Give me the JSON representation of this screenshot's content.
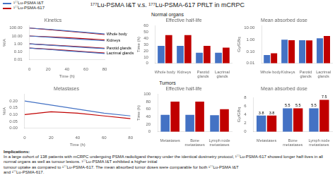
{
  "title": "¹⁷⁷Lu-PSMA I&T v.s. ¹⁷⁷Lu-PSMA-617 PRLT in mCRPC",
  "annotations": [
    "Normal organs",
    "Tumors",
    "Implications:",
    "In a large cohort of 138 patients with mCRPC undergoing PSMA radioligand therapy under the identical dosimetry protocol, ¹⁷⁷Lu-PSMA-617 showed longer half-lives in all normal organs as well as tumour lesions. ¹⁷⁷Lu-PSMA I&T exhibited a higher initial\ntumour uptake as compared to ¹⁷⁷Lu-PSMA-617. The mean absorbed tumor doses were comparable for both ¹⁷⁷Lu-PSMA I&T\nand ¹⁷⁷Lu-PSMA-617."
  ],
  "chart_data": [
    {
      "type": "line",
      "title": "Kinetics",
      "xlabel": "Time (h)",
      "ylabel": "%IA",
      "x": [
        0,
        20,
        40,
        60,
        80
      ],
      "series": [
        {
          "name": "¹⁷⁷Lu-PSMA I&T",
          "color": "#4472C4",
          "values": [
            100,
            70,
            45,
            28,
            18
          ]
        },
        {
          "name": "¹⁷⁷Lu-PSMA-617",
          "color": "#C00000",
          "values": [
            100,
            65,
            40,
            25,
            15
          ]
        },
        {
          "name": "¹⁷⁷Lu-PSMA I&T",
          "color": "#4472C4",
          "values": [
            10,
            7,
            5,
            3.5,
            2.5
          ]
        },
        {
          "name": "¹⁷⁷Lu-PSMA-617",
          "color": "#C00000",
          "values": [
            10,
            8,
            6,
            4.5,
            3.2
          ]
        },
        {
          "name": "¹⁷⁷Lu-PSMA I&T",
          "color": "#4472C4",
          "values": [
            1,
            0.7,
            0.5,
            0.35,
            0.25
          ]
        },
        {
          "name": "¹⁷⁷Lu-PSMA-617",
          "color": "#C00000",
          "values": [
            1,
            0.75,
            0.55,
            0.4,
            0.28
          ]
        },
        {
          "name": "¹⁷⁷Lu-PSMA I&T",
          "color": "#4472C4",
          "values": [
            0.3,
            0.2,
            0.13,
            0.09,
            0.06
          ]
        },
        {
          "name": "¹⁷⁷Lu-PSMA-617",
          "color": "#C00000",
          "values": [
            0.3,
            0.22,
            0.15,
            0.1,
            0.07
          ]
        }
      ],
      "xlim": [
        0,
        80
      ],
      "xticks": [
        0,
        20,
        40,
        60,
        80
      ],
      "ylim": [
        0.01,
        200
      ],
      "yticks": [
        0.01,
        {
          "value": 0.1,
          "label": "0.10"
        },
        {
          "value": 1,
          "label": "1.00"
        },
        {
          "value": 10,
          "label": "10.00"
        },
        {
          "value": 100,
          "label": "100.00"
        }
      ],
      "log": "y",
      "grid": false,
      "legend": "top",
      "annotations": [
        {
          "text": "Whole body",
          "x": 82,
          "y": 18
        },
        {
          "text": "Kidneys",
          "x": 82,
          "y": 2.5
        },
        {
          "text": "Parotid glands",
          "x": 82,
          "y": 0.25
        },
        {
          "text": "Lacrimal glands",
          "x": 82,
          "y": 0.06
        }
      ]
    },
    {
      "type": "bar",
      "title": "Effective half-life",
      "ylabel": "Time (h)",
      "categories": [
        "Whole body",
        "Kidneys",
        "Parotid\nglands",
        "Lacrimal\nglands"
      ],
      "series": [
        {
          "name": "¹⁷⁷Lu-PSMA I&T",
          "color": "#4472C4",
          "values": [
            28,
            28,
            17,
            17
          ]
        },
        {
          "name": "¹⁷⁷Lu-PSMA-617",
          "color": "#C00000",
          "values": [
            45,
            45,
            28,
            25
          ]
        }
      ],
      "ylim": [
        0,
        60
      ],
      "yticks": [
        0,
        10,
        20,
        30,
        40,
        50,
        60
      ],
      "grid": false
    },
    {
      "type": "bar",
      "title": "Mean absorbed dose",
      "ylabel": "Gy/GBq",
      "categories": [
        "Whole body",
        "Kidneys",
        "Parotid\nglands",
        "Lacrimal\nglands"
      ],
      "series": [
        {
          "name": "¹⁷⁷Lu-PSMA I&T",
          "color": "#4472C4",
          "values": [
            0.05,
            1.0,
            0.9,
            1.3
          ]
        },
        {
          "name": "¹⁷⁷Lu-PSMA-617",
          "color": "#C00000",
          "values": [
            0.07,
            0.9,
            0.85,
            2.0
          ]
        }
      ],
      "ylim": [
        0.01,
        15
      ],
      "yticks": [
        0.01,
        {
          "value": 0.1,
          "label": "0.10"
        },
        {
          "value": 1,
          "label": "1.00"
        },
        {
          "value": 10,
          "label": "10.00"
        }
      ],
      "log": "y",
      "grid": false
    },
    {
      "type": "line",
      "title": "Metastases",
      "xlabel": "Time (h)",
      "ylabel": "%IA",
      "x": [
        0,
        20,
        40,
        60,
        80
      ],
      "series": [
        {
          "name": "¹⁷⁷Lu-PSMA I&T",
          "color": "#4472C4",
          "values": [
            0.2,
            0.17,
            0.14,
            0.11,
            0.09
          ]
        },
        {
          "name": "¹⁷⁷Lu-PSMA-617",
          "color": "#C00000",
          "values": [
            0.1,
            0.12,
            0.11,
            0.09,
            0.07
          ]
        }
      ],
      "xlim": [
        0,
        80
      ],
      "xticks": [
        0,
        20,
        40,
        60,
        80
      ],
      "ylim": [
        0,
        0.25
      ],
      "yticks": [
        {
          "value": 0,
          "label": "0.00"
        },
        0.05,
        {
          "value": 0.1,
          "label": "0.10"
        },
        0.15,
        {
          "value": 0.2,
          "label": "0.20"
        }
      ],
      "grid": false
    },
    {
      "type": "bar",
      "title": "Effective half-life",
      "ylabel": "Time (h)",
      "categories": [
        "Metastases",
        "Bone\nmetastases",
        "Lymph node\nmetastases"
      ],
      "series": [
        {
          "name": "¹⁷⁷Lu-PSMA I&T",
          "color": "#4472C4",
          "values": [
            45,
            45,
            44
          ]
        },
        {
          "name": "¹⁷⁷Lu-PSMA-617",
          "color": "#C00000",
          "values": [
            80,
            80,
            60
          ]
        }
      ],
      "ylim": [
        0,
        100
      ],
      "yticks": [
        0,
        20,
        40,
        60,
        80,
        100
      ],
      "grid": false
    },
    {
      "type": "bar",
      "title": "Mean absorbed dose",
      "ylabel": "Gy/GBq",
      "categories": [
        "Metastases",
        "Bone\nmetastases",
        "Lymph node\nmetastases"
      ],
      "series": [
        {
          "name": "¹⁷⁷Lu-PSMA I&T",
          "color": "#4472C4",
          "values": [
            3.8,
            5.5,
            5.5
          ]
        },
        {
          "name": "¹⁷⁷Lu-PSMA-617",
          "color": "#C00000",
          "values": [
            3.8,
            5.5,
            7.5
          ]
        }
      ],
      "ylim": [
        0,
        8
      ],
      "yticks": [
        0,
        2,
        4,
        6,
        8
      ],
      "grid": false,
      "data_labels": true
    }
  ]
}
